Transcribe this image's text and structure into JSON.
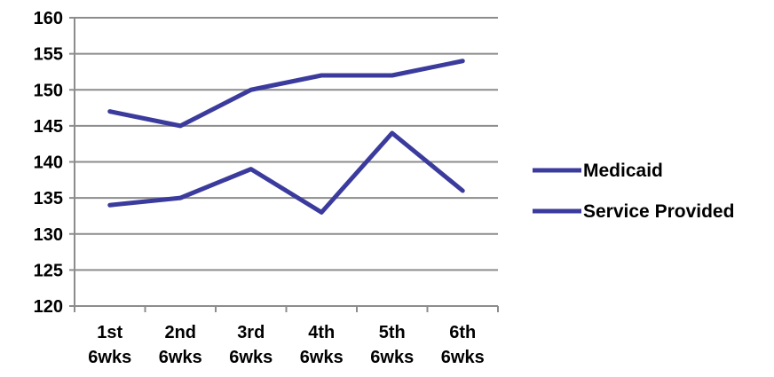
{
  "chart_data": {
    "type": "line",
    "title": "",
    "xlabel": "",
    "ylabel": "",
    "categories": [
      [
        "1st",
        "6wks"
      ],
      [
        "2nd",
        "6wks"
      ],
      [
        "3rd",
        "6wks"
      ],
      [
        "4th",
        "6wks"
      ],
      [
        "5th",
        "6wks"
      ],
      [
        "6th",
        "6wks"
      ]
    ],
    "ylim": [
      120,
      160
    ],
    "yticks": [
      "120",
      "125",
      "130",
      "135",
      "140",
      "145",
      "150",
      "155",
      "160"
    ],
    "grid": true,
    "legend_position": "right",
    "series": [
      {
        "name": "Medicaid",
        "values": [
          147,
          145,
          150,
          152,
          152,
          154
        ],
        "color": "#3b3b9e"
      },
      {
        "name": "Service Provided",
        "values": [
          134,
          135,
          139,
          133,
          144,
          136
        ],
        "color": "#3b3b9e"
      }
    ]
  }
}
